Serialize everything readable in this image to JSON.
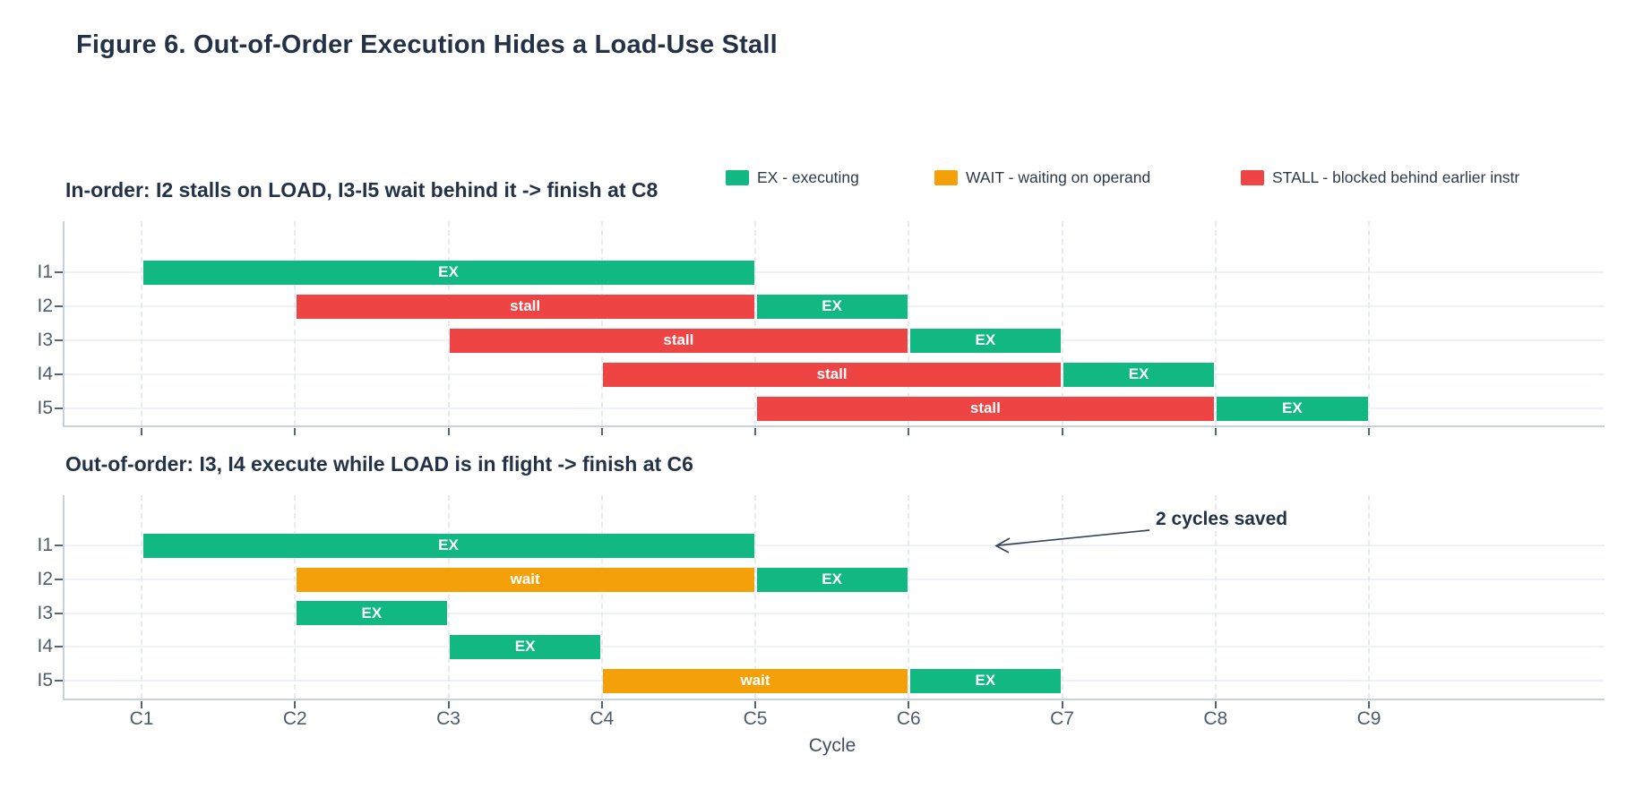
{
  "figure": {
    "title": "Figure 6. Out-of-Order Execution Hides a Load-Use Stall"
  },
  "legend": {
    "items": [
      {
        "key": "EX",
        "label": "EX  - executing",
        "color": "#12b881"
      },
      {
        "key": "WAIT",
        "label": "WAIT  - waiting on operand",
        "color": "#f3a009"
      },
      {
        "key": "STALL",
        "label": "STALL - blocked behind earlier instr",
        "color": "#ef4444"
      }
    ]
  },
  "annotation": {
    "text": "2 cycles saved"
  },
  "x_axis": {
    "title": "Cycle",
    "tick_labels": [
      "C1",
      "C2",
      "C3",
      "C4",
      "C5",
      "C6",
      "C7",
      "C8",
      "C9"
    ],
    "tick_values": [
      1,
      2,
      3,
      4,
      5,
      6,
      7,
      8,
      9
    ]
  },
  "state_colors": {
    "EX": "#12b881",
    "WAIT": "#f3a009",
    "STALL": "#ef4444"
  },
  "chart_data": [
    {
      "type": "gantt",
      "title": "In-order: I2 stalls on LOAD, I3-I5 wait behind it -> finish at C8",
      "rows": [
        "I1",
        "I2",
        "I3",
        "I4",
        "I5"
      ],
      "xlabel": "Cycle",
      "xlim": [
        0.5,
        10.55
      ],
      "x_tick_labels_visible": false,
      "bars": [
        {
          "row": "I1",
          "start": 1,
          "end": 5,
          "state": "EX",
          "label": "EX"
        },
        {
          "row": "I2",
          "start": 2,
          "end": 5,
          "state": "STALL",
          "label": "stall"
        },
        {
          "row": "I2",
          "start": 5,
          "end": 6,
          "state": "EX",
          "label": "EX"
        },
        {
          "row": "I3",
          "start": 3,
          "end": 6,
          "state": "STALL",
          "label": "stall"
        },
        {
          "row": "I3",
          "start": 6,
          "end": 7,
          "state": "EX",
          "label": "EX"
        },
        {
          "row": "I4",
          "start": 4,
          "end": 7,
          "state": "STALL",
          "label": "stall"
        },
        {
          "row": "I4",
          "start": 7,
          "end": 8,
          "state": "EX",
          "label": "EX"
        },
        {
          "row": "I5",
          "start": 5,
          "end": 8,
          "state": "STALL",
          "label": "stall"
        },
        {
          "row": "I5",
          "start": 8,
          "end": 9,
          "state": "EX",
          "label": "EX"
        }
      ]
    },
    {
      "type": "gantt",
      "title": "Out-of-order: I3, I4 execute while LOAD is in flight -> finish at C6",
      "rows": [
        "I1",
        "I2",
        "I3",
        "I4",
        "I5"
      ],
      "xlabel": "Cycle",
      "xlim": [
        0.5,
        10.55
      ],
      "x_tick_labels_visible": true,
      "annotation": "2 cycles saved",
      "bars": [
        {
          "row": "I1",
          "start": 1,
          "end": 5,
          "state": "EX",
          "label": "EX"
        },
        {
          "row": "I2",
          "start": 2,
          "end": 5,
          "state": "WAIT",
          "label": "wait"
        },
        {
          "row": "I2",
          "start": 5,
          "end": 6,
          "state": "EX",
          "label": "EX"
        },
        {
          "row": "I3",
          "start": 2,
          "end": 3,
          "state": "EX",
          "label": "EX"
        },
        {
          "row": "I4",
          "start": 3,
          "end": 4,
          "state": "EX",
          "label": "EX"
        },
        {
          "row": "I5",
          "start": 4,
          "end": 6,
          "state": "WAIT",
          "label": "wait"
        },
        {
          "row": "I5",
          "start": 6,
          "end": 7,
          "state": "EX",
          "label": "EX"
        }
      ]
    }
  ]
}
